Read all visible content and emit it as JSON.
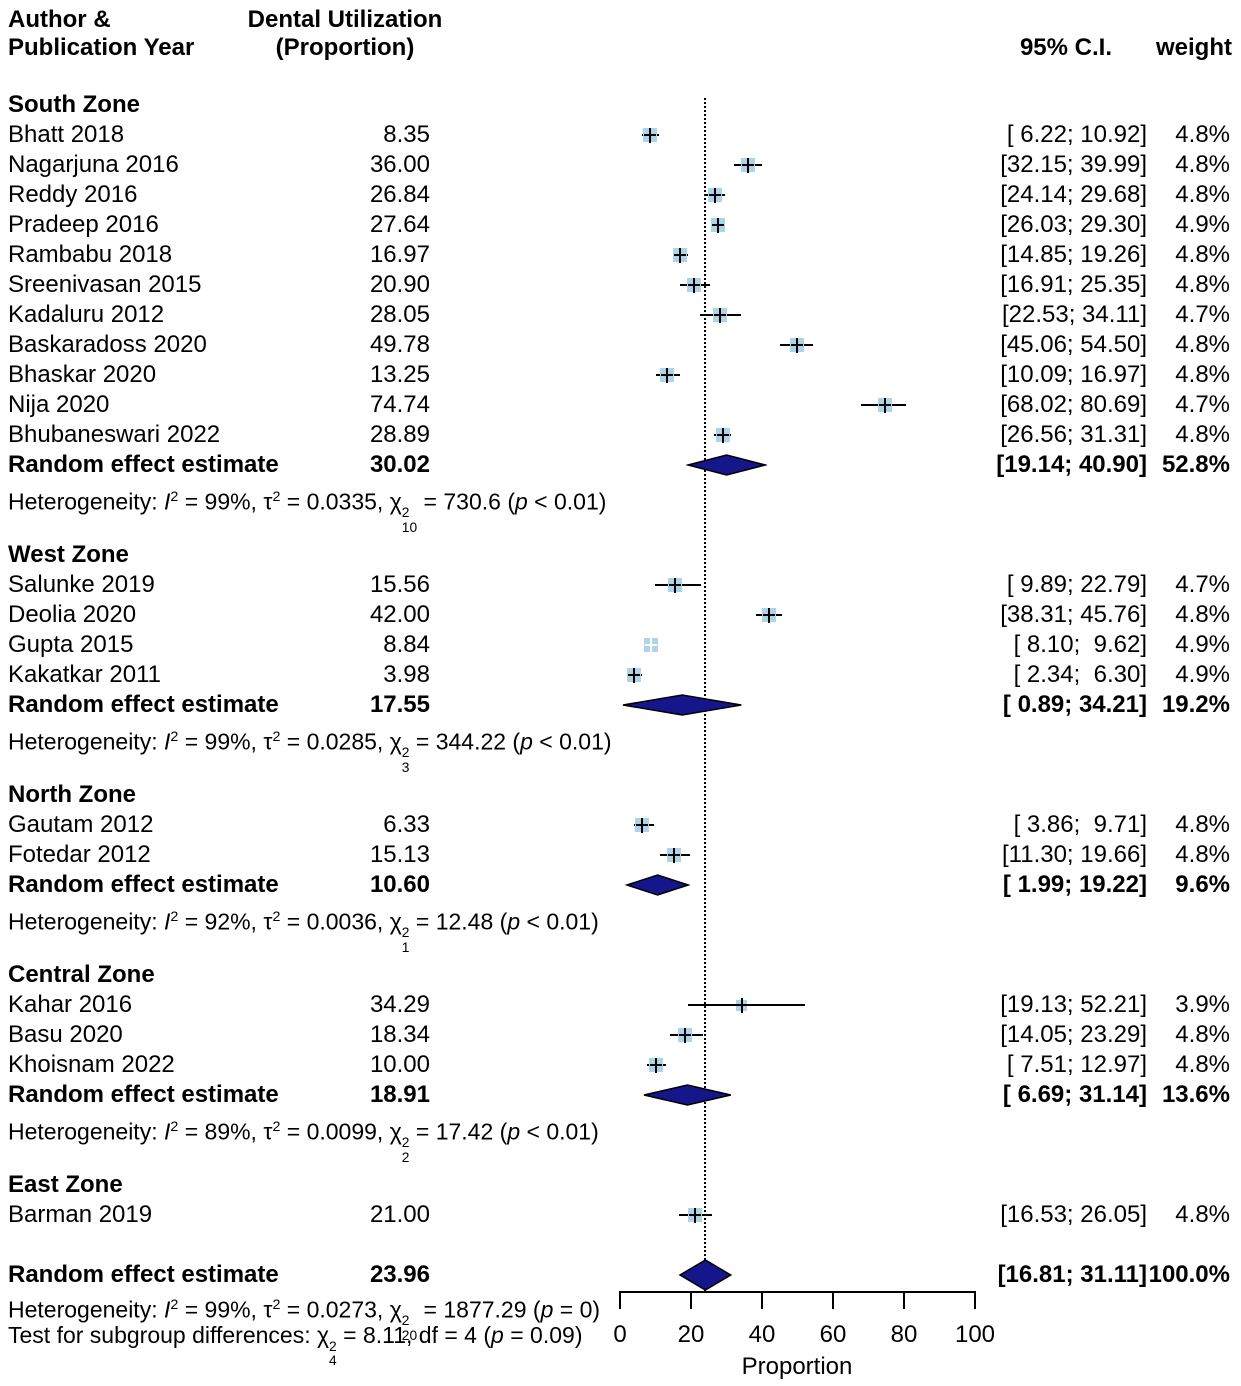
{
  "header": {
    "author_line1": "Author &",
    "author_line2": "Publication Year",
    "effect_line1": "Dental Utilization",
    "effect_line2": "(Proportion)",
    "ci": "95% C.I.",
    "weight": "weight"
  },
  "chart_data": {
    "type": "forest",
    "x_axis": {
      "min": 0,
      "max": 100,
      "ticks": [
        0,
        20,
        40,
        60,
        80,
        100
      ],
      "label": "Proportion"
    },
    "reference_line": 23.96,
    "colors": {
      "square": "#b0d4e7",
      "diamond": "#16168c",
      "line": "#000000"
    },
    "summary_label": "Random effect estimate",
    "groups": [
      {
        "name": "South Zone",
        "studies": [
          {
            "label": "Bhatt 2018",
            "estimate_text": "8.35",
            "estimate": 8.35,
            "ci": [
              6.22,
              10.92
            ],
            "ci_text": "[ 6.22; 10.92]",
            "weight": 4.8,
            "weight_text": "4.8%"
          },
          {
            "label": "Nagarjuna 2016",
            "estimate_text": "36.00",
            "estimate": 36.0,
            "ci": [
              32.15,
              39.99
            ],
            "ci_text": "[32.15; 39.99]",
            "weight": 4.8,
            "weight_text": "4.8%"
          },
          {
            "label": "Reddy 2016",
            "estimate_text": "26.84",
            "estimate": 26.84,
            "ci": [
              24.14,
              29.68
            ],
            "ci_text": "[24.14; 29.68]",
            "weight": 4.8,
            "weight_text": "4.8%"
          },
          {
            "label": "Pradeep 2016",
            "estimate_text": "27.64",
            "estimate": 27.64,
            "ci": [
              26.03,
              29.3
            ],
            "ci_text": "[26.03; 29.30]",
            "weight": 4.9,
            "weight_text": "4.9%"
          },
          {
            "label": "Rambabu 2018",
            "estimate_text": "16.97",
            "estimate": 16.97,
            "ci": [
              14.85,
              19.26
            ],
            "ci_text": "[14.85; 19.26]",
            "weight": 4.8,
            "weight_text": "4.8%"
          },
          {
            "label": "Sreenivasan 2015",
            "estimate_text": "20.90",
            "estimate": 20.9,
            "ci": [
              16.91,
              25.35
            ],
            "ci_text": "[16.91; 25.35]",
            "weight": 4.8,
            "weight_text": "4.8%"
          },
          {
            "label": "Kadaluru 2012",
            "estimate_text": "28.05",
            "estimate": 28.05,
            "ci": [
              22.53,
              34.11
            ],
            "ci_text": "[22.53; 34.11]",
            "weight": 4.7,
            "weight_text": "4.7%"
          },
          {
            "label": "Baskaradoss 2020",
            "estimate_text": "49.78",
            "estimate": 49.78,
            "ci": [
              45.06,
              54.5
            ],
            "ci_text": "[45.06; 54.50]",
            "weight": 4.8,
            "weight_text": "4.8%"
          },
          {
            "label": "Bhaskar 2020",
            "estimate_text": "13.25",
            "estimate": 13.25,
            "ci": [
              10.09,
              16.97
            ],
            "ci_text": "[10.09; 16.97]",
            "weight": 4.8,
            "weight_text": "4.8%"
          },
          {
            "label": "Nija 2020",
            "estimate_text": "74.74",
            "estimate": 74.74,
            "ci": [
              68.02,
              80.69
            ],
            "ci_text": "[68.02; 80.69]",
            "weight": 4.7,
            "weight_text": "4.7%"
          },
          {
            "label": "Bhubaneswari 2022",
            "estimate_text": "28.89",
            "estimate": 28.89,
            "ci": [
              26.56,
              31.31
            ],
            "ci_text": "[26.56; 31.31]",
            "weight": 4.8,
            "weight_text": "4.8%"
          }
        ],
        "summary": {
          "estimate_text": "30.02",
          "estimate": 30.02,
          "ci": [
            19.14,
            40.9
          ],
          "ci_text": "[19.14; 40.90]",
          "weight_text": "52.8%"
        },
        "heterogeneity": {
          "i2": "99%",
          "tau2": "0.0335",
          "chi_df": "10",
          "chi_val": "730.6",
          "p": "p < 0.01"
        }
      },
      {
        "name": "West Zone",
        "studies": [
          {
            "label": "Salunke 2019",
            "estimate_text": "15.56",
            "estimate": 15.56,
            "ci": [
              9.89,
              22.79
            ],
            "ci_text": "[ 9.89; 22.79]",
            "weight": 4.7,
            "weight_text": "4.7%"
          },
          {
            "label": "Deolia 2020",
            "estimate_text": "42.00",
            "estimate": 42.0,
            "ci": [
              38.31,
              45.76
            ],
            "ci_text": "[38.31; 45.76]",
            "weight": 4.8,
            "weight_text": "4.8%"
          },
          {
            "label": "Gupta 2015",
            "estimate_text": "8.84",
            "estimate": 8.84,
            "ci": [
              8.1,
              9.62
            ],
            "ci_text": "[ 8.10;  9.62]",
            "weight": 4.9,
            "weight_text": "4.9%"
          },
          {
            "label": "Kakatkar 2011",
            "estimate_text": "3.98",
            "estimate": 3.98,
            "ci": [
              2.34,
              6.3
            ],
            "ci_text": "[ 2.34;  6.30]",
            "weight": 4.9,
            "weight_text": "4.9%"
          }
        ],
        "summary": {
          "estimate_text": "17.55",
          "estimate": 17.55,
          "ci": [
            0.89,
            34.21
          ],
          "ci_text": "[ 0.89; 34.21]",
          "weight_text": "19.2%"
        },
        "heterogeneity": {
          "i2": "99%",
          "tau2": "0.0285",
          "chi_df": "3",
          "chi_val": "344.22",
          "p": "p < 0.01"
        }
      },
      {
        "name": "North Zone",
        "studies": [
          {
            "label": "Gautam 2012",
            "estimate_text": "6.33",
            "estimate": 6.33,
            "ci": [
              3.86,
              9.71
            ],
            "ci_text": "[ 3.86;  9.71]",
            "weight": 4.8,
            "weight_text": "4.8%"
          },
          {
            "label": "Fotedar 2012",
            "estimate_text": "15.13",
            "estimate": 15.13,
            "ci": [
              11.3,
              19.66
            ],
            "ci_text": "[11.30; 19.66]",
            "weight": 4.8,
            "weight_text": "4.8%"
          }
        ],
        "summary": {
          "estimate_text": "10.60",
          "estimate": 10.6,
          "ci": [
            1.99,
            19.22
          ],
          "ci_text": "[ 1.99; 19.22]",
          "weight_text": "9.6%"
        },
        "heterogeneity": {
          "i2": "92%",
          "tau2": "0.0036",
          "chi_df": "1",
          "chi_val": "12.48",
          "p": "p < 0.01"
        }
      },
      {
        "name": "Central Zone",
        "studies": [
          {
            "label": "Kahar 2016",
            "estimate_text": "34.29",
            "estimate": 34.29,
            "ci": [
              19.13,
              52.21
            ],
            "ci_text": "[19.13; 52.21]",
            "weight": 3.9,
            "weight_text": "3.9%"
          },
          {
            "label": "Basu 2020",
            "estimate_text": "18.34",
            "estimate": 18.34,
            "ci": [
              14.05,
              23.29
            ],
            "ci_text": "[14.05; 23.29]",
            "weight": 4.8,
            "weight_text": "4.8%"
          },
          {
            "label": "Khoisnam 2022",
            "estimate_text": "10.00",
            "estimate": 10.0,
            "ci": [
              7.51,
              12.97
            ],
            "ci_text": "[ 7.51; 12.97]",
            "weight": 4.8,
            "weight_text": "4.8%"
          }
        ],
        "summary": {
          "estimate_text": "18.91",
          "estimate": 18.91,
          "ci": [
            6.69,
            31.14
          ],
          "ci_text": "[ 6.69; 31.14]",
          "weight_text": "13.6%"
        },
        "heterogeneity": {
          "i2": "89%",
          "tau2": "0.0099",
          "chi_df": "2",
          "chi_val": "17.42",
          "p": "p < 0.01"
        }
      },
      {
        "name": "East Zone",
        "studies": [
          {
            "label": "Barman 2019",
            "estimate_text": "21.00",
            "estimate": 21.0,
            "ci": [
              16.53,
              26.05
            ],
            "ci_text": "[16.53; 26.05]",
            "weight": 4.8,
            "weight_text": "4.8%"
          }
        ]
      }
    ],
    "overall": {
      "label": "Random effect estimate",
      "estimate_text": "23.96",
      "estimate": 23.96,
      "ci": [
        16.81,
        31.11
      ],
      "ci_text": "[16.81; 31.11]",
      "weight_text": "100.0%"
    },
    "overall_heterogeneity": {
      "i2": "99%",
      "tau2": "0.0273",
      "chi_df": "20",
      "chi_val": "1877.29",
      "p": "p = 0"
    },
    "subgroup_test": {
      "prefix": "Test for subgroup differences: ",
      "chi_df": "4",
      "chi_val": "8.11",
      "mid": ", df = 4",
      "p": "p = 0.09"
    }
  }
}
